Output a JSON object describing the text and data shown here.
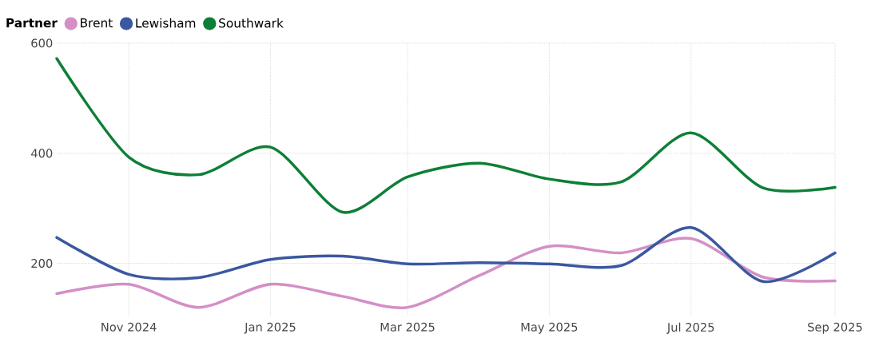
{
  "chart_data": {
    "type": "line",
    "legend_title": "Partner",
    "x": [
      "2024-10",
      "2024-11",
      "2024-12",
      "2025-01",
      "2025-02",
      "2025-03",
      "2025-04",
      "2025-05",
      "2025-06",
      "2025-07",
      "2025-08",
      "2025-09"
    ],
    "series": [
      {
        "name": "Brent",
        "color": "#d48fc7",
        "values": [
          145,
          162,
          120,
          162,
          140,
          120,
          178,
          231,
          219,
          245,
          175,
          168
        ]
      },
      {
        "name": "Lewisham",
        "color": "#3a58a0",
        "values": [
          247,
          180,
          174,
          207,
          213,
          199,
          201,
          199,
          196,
          265,
          167,
          219
        ]
      },
      {
        "name": "Southwark",
        "color": "#0e7f36",
        "values": [
          572,
          393,
          361,
          411,
          293,
          357,
          382,
          353,
          348,
          437,
          337,
          338
        ]
      }
    ],
    "xlim": [
      "2024-10",
      "2025-09"
    ],
    "xticks": [
      {
        "value": "2024-11",
        "label": "Nov 2024"
      },
      {
        "value": "2025-01",
        "label": "Jan 2025"
      },
      {
        "value": "2025-03",
        "label": "Mar 2025"
      },
      {
        "value": "2025-05",
        "label": "May 2025"
      },
      {
        "value": "2025-07",
        "label": "Jul 2025"
      },
      {
        "value": "2025-09",
        "label": "Sep 2025"
      }
    ],
    "ylim": [
      105,
      600
    ],
    "yticks": [
      200,
      400,
      600
    ],
    "grid": true,
    "legend": "top left",
    "marker": "none",
    "line_style": "solid"
  }
}
